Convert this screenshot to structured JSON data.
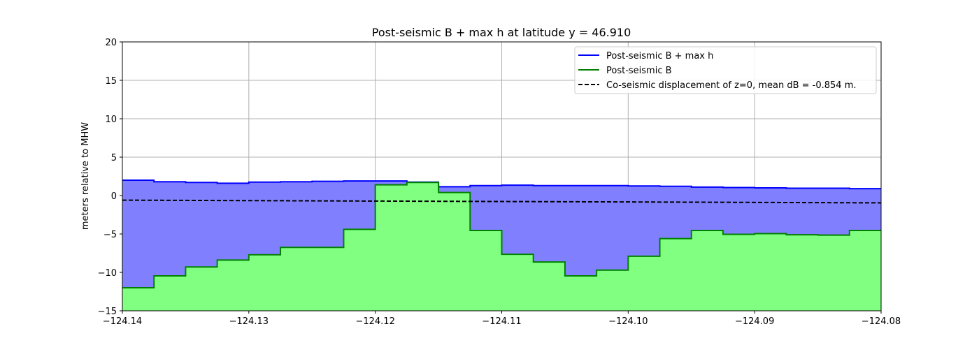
{
  "chart_data": {
    "type": "area",
    "title": "Post-seismic B + max h at latitude y = 46.910",
    "xlabel": "",
    "ylabel": "meters relative to MHW",
    "xlim": [
      -124.14,
      -124.08
    ],
    "ylim": [
      -15,
      20
    ],
    "grid": true,
    "legend_placement": "top-right",
    "xticks": [
      -124.14,
      -124.13,
      -124.12,
      -124.11,
      -124.1,
      -124.09,
      -124.08
    ],
    "xtick_labels": [
      "−124.14",
      "−124.13",
      "−124.12",
      "−124.11",
      "−124.10",
      "−124.09",
      "−124.08"
    ],
    "yticks": [
      -15,
      -10,
      -5,
      0,
      5,
      10,
      15,
      20
    ],
    "ytick_labels": [
      "−15",
      "−10",
      "−5",
      "0",
      "5",
      "10",
      "15",
      "20"
    ],
    "step_width": 0.0025,
    "series": [
      {
        "name": "Post-seismic B + max h",
        "color": "#0000ff",
        "fill": "#8080ff",
        "values": [
          2.0,
          1.8,
          1.7,
          1.6,
          1.75,
          1.8,
          1.85,
          1.9,
          1.9,
          1.75,
          1.15,
          1.3,
          1.35,
          1.3,
          1.3,
          1.3,
          1.25,
          1.2,
          1.1,
          1.05,
          1.0,
          0.95,
          0.95,
          0.9
        ]
      },
      {
        "name": "Post-seismic B",
        "color": "#008000",
        "fill": "#80ff80",
        "values": [
          -12.0,
          -10.45,
          -9.3,
          -8.4,
          -7.7,
          -6.75,
          -6.75,
          -4.4,
          1.4,
          1.7,
          0.4,
          -4.55,
          -7.65,
          -8.65,
          -10.45,
          -9.7,
          -7.9,
          -5.6,
          -4.55,
          -5.05,
          -4.95,
          -5.1,
          -5.15,
          -4.55
        ]
      },
      {
        "name": "Co-seismic displacement of z=0, mean dB = -0.854 m.",
        "color": "#000000",
        "style": "dashed",
        "x": [
          -124.14,
          -124.08
        ],
        "values": [
          -0.6,
          -0.95
        ]
      }
    ]
  }
}
